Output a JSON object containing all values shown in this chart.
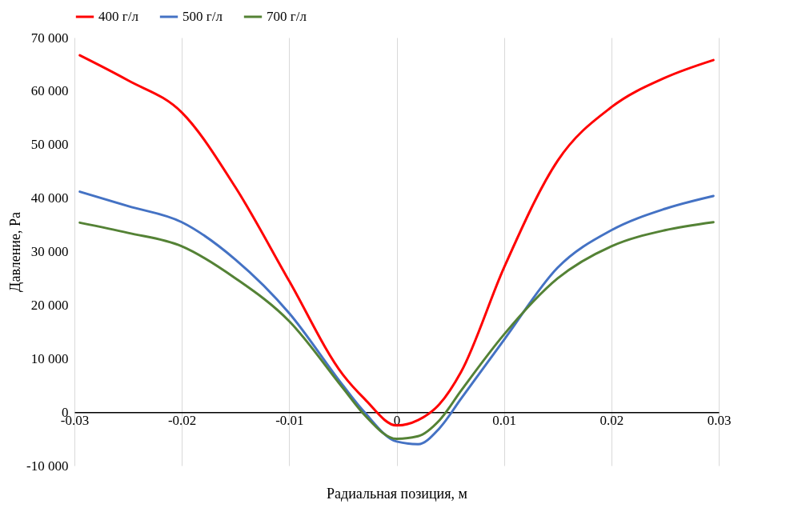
{
  "chart_data": {
    "type": "line",
    "xlabel": "Радиальная позиция, м",
    "ylabel": "Давление, Pa",
    "xlim": [
      -0.03,
      0.03
    ],
    "xticks": [
      -0.03,
      -0.02,
      -0.01,
      0,
      0.01,
      0.02,
      0.03
    ],
    "ylim": [
      -10000,
      70000
    ],
    "yticks": [
      {
        "value": -10000,
        "label": "-10 000"
      },
      {
        "value": 0,
        "label": "0"
      },
      {
        "value": 10000,
        "label": "10 000"
      },
      {
        "value": 20000,
        "label": "20 000"
      },
      {
        "value": 30000,
        "label": "30 000"
      },
      {
        "value": 40000,
        "label": "40 000"
      },
      {
        "value": 50000,
        "label": "50 000"
      },
      {
        "value": 60000,
        "label": "60 000"
      },
      {
        "value": 70000,
        "label": "70 000"
      }
    ],
    "grid": "x",
    "legend": "top",
    "marker": "none",
    "line_style": "solid",
    "x": [
      -0.0295,
      -0.025,
      -0.02,
      -0.015,
      -0.01,
      -0.005,
      -0.003,
      0,
      0.002,
      0.004,
      0.006,
      0.01,
      0.015,
      0.02,
      0.025,
      0.0295
    ],
    "series": [
      {
        "name": "400 г/л",
        "color": "#ff0000",
        "values": [
          66700,
          62000,
          56000,
          42000,
          24500,
          7000,
          2500,
          -2500,
          -1500,
          1500,
          7500,
          27000,
          47000,
          57000,
          62500,
          65800
        ]
      },
      {
        "name": "500 г/л",
        "color": "#4472c4",
        "values": [
          41200,
          38500,
          35500,
          28500,
          18500,
          5000,
          0,
          -5500,
          -6000,
          -3000,
          2500,
          13500,
          27000,
          34000,
          38000,
          40400
        ]
      },
      {
        "name": "700 г/л",
        "color": "#548235",
        "values": [
          35400,
          33500,
          31000,
          25000,
          17000,
          4500,
          -500,
          -5000,
          -4500,
          -1500,
          4000,
          14500,
          25000,
          31000,
          34000,
          35500
        ]
      }
    ]
  }
}
